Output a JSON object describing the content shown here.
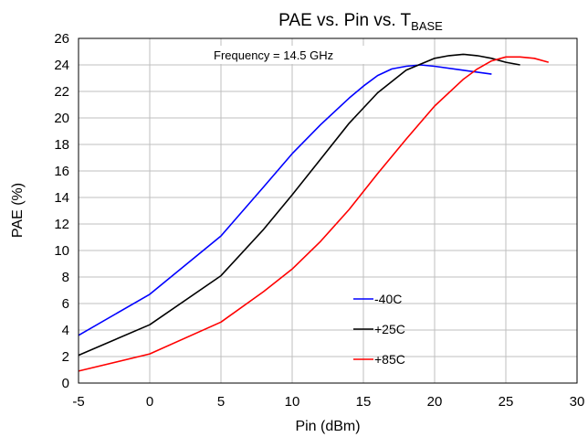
{
  "chart_data": {
    "type": "line",
    "title": "PAE vs. Pin vs. T",
    "title_subscript": "BASE",
    "xlabel": "Pin (dBm)",
    "ylabel": "PAE (%)",
    "xlim": [
      -5,
      30
    ],
    "ylim": [
      0,
      26
    ],
    "xticks": [
      -5,
      0,
      5,
      10,
      15,
      20,
      25,
      30
    ],
    "yticks": [
      0,
      2,
      4,
      6,
      8,
      10,
      12,
      14,
      16,
      18,
      20,
      22,
      24,
      26
    ],
    "grid": true,
    "annotation": "Frequency = 14.5 GHz",
    "legend_position": "bottom-right",
    "series": [
      {
        "name": "-40C",
        "color": "#0000ff",
        "x": [
          -5,
          0,
          5,
          8,
          10,
          12,
          14,
          15,
          16,
          17,
          18,
          19,
          20,
          22,
          24
        ],
        "y": [
          3.6,
          6.7,
          11.1,
          14.8,
          17.3,
          19.5,
          21.5,
          22.4,
          23.2,
          23.7,
          23.9,
          24.0,
          23.9,
          23.6,
          23.3
        ]
      },
      {
        "name": "+25C",
        "color": "#000000",
        "x": [
          -5,
          0,
          5,
          8,
          10,
          12,
          14,
          16,
          18,
          20,
          21,
          22,
          23,
          24,
          25,
          26
        ],
        "y": [
          2.1,
          4.4,
          8.1,
          11.6,
          14.2,
          16.9,
          19.6,
          21.9,
          23.6,
          24.5,
          24.7,
          24.8,
          24.7,
          24.5,
          24.2,
          24.0
        ]
      },
      {
        "name": "+85C",
        "color": "#ff0000",
        "x": [
          -5,
          0,
          5,
          8,
          10,
          12,
          14,
          16,
          18,
          20,
          22,
          23,
          24,
          25,
          26,
          27,
          28
        ],
        "y": [
          0.9,
          2.2,
          4.6,
          6.9,
          8.6,
          10.7,
          13.1,
          15.8,
          18.4,
          20.9,
          22.9,
          23.7,
          24.3,
          24.6,
          24.6,
          24.5,
          24.2
        ]
      }
    ]
  }
}
